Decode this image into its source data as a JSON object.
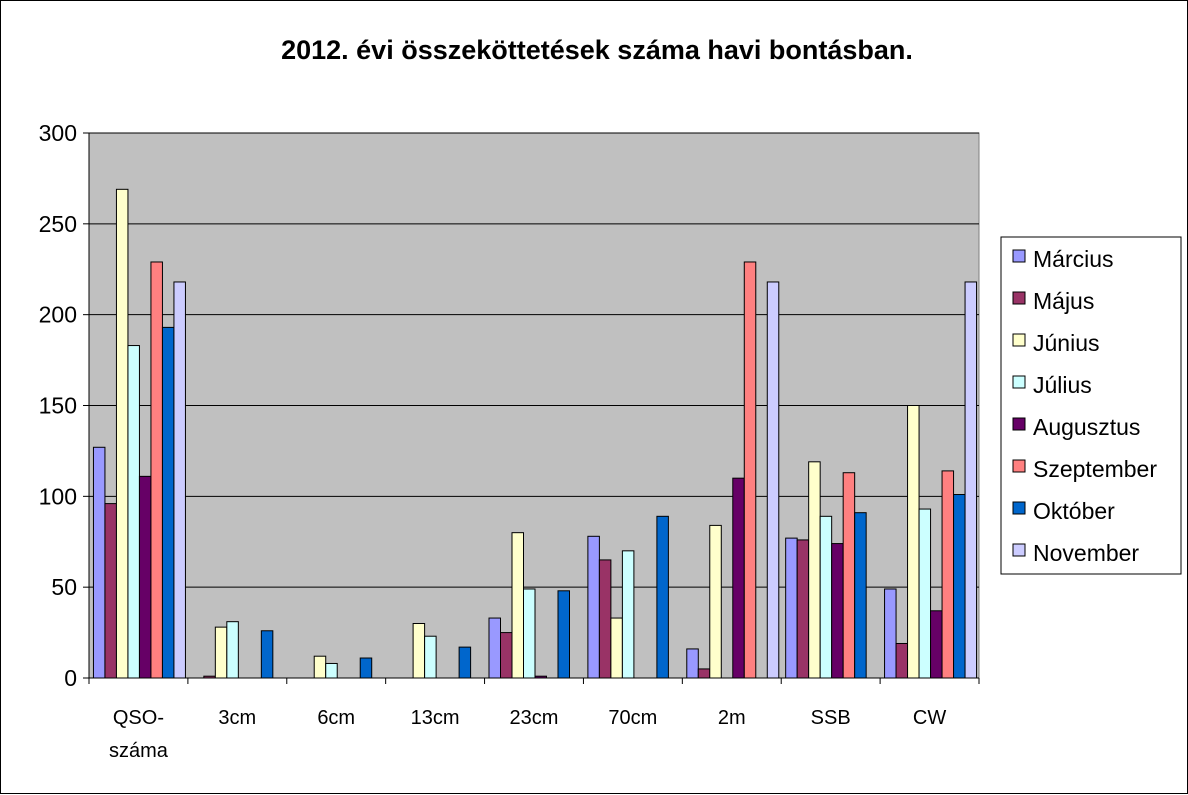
{
  "chart_data": {
    "type": "bar",
    "title": "2012. évi összeköttetések száma havi bontásban.",
    "xlabel": "",
    "ylabel": "",
    "ylim": [
      0,
      300
    ],
    "yticks": [
      0,
      50,
      100,
      150,
      200,
      250,
      300
    ],
    "grid": true,
    "legend_position": "right",
    "categories": [
      [
        "QSO-",
        "száma"
      ],
      [
        "3cm"
      ],
      [
        "6cm"
      ],
      [
        "13cm"
      ],
      [
        "23cm"
      ],
      [
        "70cm"
      ],
      [
        "2m"
      ],
      [
        "SSB"
      ],
      [
        "CW"
      ]
    ],
    "series": [
      {
        "name": "Március",
        "color": "#9999ff",
        "values": [
          127,
          0,
          0,
          0,
          33,
          78,
          16,
          77,
          49
        ]
      },
      {
        "name": "Május",
        "color": "#993366",
        "values": [
          96,
          1,
          0,
          0,
          25,
          65,
          5,
          76,
          19
        ]
      },
      {
        "name": "Június",
        "color": "#ffffcc",
        "values": [
          269,
          28,
          12,
          30,
          80,
          33,
          84,
          119,
          150
        ]
      },
      {
        "name": "Július",
        "color": "#ccffff",
        "values": [
          183,
          31,
          8,
          23,
          49,
          70,
          0,
          89,
          93
        ]
      },
      {
        "name": "Augusztus",
        "color": "#660066",
        "values": [
          111,
          0,
          0,
          0,
          1,
          0,
          110,
          74,
          37
        ]
      },
      {
        "name": "Szeptember",
        "color": "#ff8080",
        "values": [
          229,
          0,
          0,
          0,
          0,
          0,
          229,
          113,
          114
        ]
      },
      {
        "name": "Október",
        "color": "#0066cc",
        "values": [
          193,
          26,
          11,
          17,
          48,
          89,
          0,
          91,
          101
        ]
      },
      {
        "name": "November",
        "color": "#ccccff",
        "values": [
          218,
          0,
          0,
          0,
          0,
          0,
          218,
          0,
          218
        ]
      }
    ]
  }
}
